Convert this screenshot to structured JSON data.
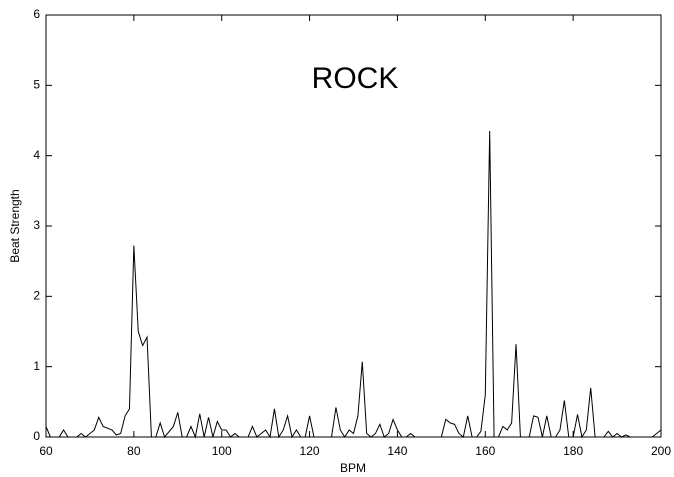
{
  "chart_data": {
    "type": "line",
    "title": "ROCK",
    "xlabel": "BPM",
    "ylabel": "Beat Strength",
    "x": [
      60,
      61,
      63,
      64,
      65,
      67,
      68,
      69,
      71,
      72,
      73,
      75,
      76,
      77,
      78,
      79,
      80,
      81,
      82,
      83,
      84,
      85,
      86,
      87,
      89,
      90,
      91,
      92,
      93,
      94,
      95,
      96,
      97,
      98,
      99,
      100,
      101,
      102,
      103,
      104,
      106,
      107,
      108,
      110,
      111,
      112,
      113,
      114,
      115,
      116,
      117,
      118,
      119,
      120,
      121,
      122,
      125,
      126,
      127,
      128,
      129,
      130,
      131,
      132,
      133,
      134,
      135,
      136,
      137,
      138,
      139,
      140,
      141,
      142,
      143,
      144,
      150,
      151,
      152,
      153,
      154,
      155,
      156,
      157,
      158,
      159,
      160,
      161,
      162,
      163,
      164,
      165,
      166,
      167,
      168,
      170,
      171,
      172,
      173,
      174,
      175,
      176,
      177,
      178,
      179,
      180,
      181,
      182,
      183,
      184,
      185,
      187,
      188,
      189,
      190,
      191,
      192,
      193,
      198,
      199,
      200
    ],
    "series": [
      {
        "name": "ROCK",
        "color": "#000000",
        "values": [
          0.15,
          0,
          0,
          0.1,
          0,
          0,
          0.05,
          0,
          0.1,
          0.28,
          0.15,
          0.1,
          0.03,
          0.05,
          0.3,
          0.4,
          2.72,
          1.5,
          1.3,
          1.42,
          0,
          0,
          0.2,
          0,
          0.15,
          0.35,
          0,
          0,
          0.15,
          0,
          0.33,
          0,
          0.28,
          0,
          0.22,
          0.1,
          0.1,
          0,
          0.05,
          0,
          0,
          0.15,
          0,
          0.1,
          0,
          0.4,
          0,
          0.1,
          0.3,
          0,
          0.1,
          0,
          0,
          0.3,
          0,
          0,
          0,
          0.42,
          0.1,
          0,
          0.1,
          0.05,
          0.3,
          1.07,
          0.05,
          0,
          0.05,
          0.18,
          0,
          0.05,
          0.25,
          0.1,
          0,
          0,
          0.05,
          0,
          0,
          0.25,
          0.2,
          0.18,
          0.05,
          0,
          0.3,
          0,
          0,
          0.08,
          0.6,
          4.35,
          0,
          0,
          0.15,
          0.1,
          0.2,
          1.32,
          0,
          0,
          0.3,
          0.28,
          0,
          0.3,
          0,
          0,
          0.1,
          0.52,
          0,
          0,
          0.32,
          0,
          0.1,
          0.7,
          0,
          0,
          0.08,
          0,
          0.05,
          0,
          0.03,
          0,
          0,
          0.05,
          0.1
        ]
      }
    ],
    "xlim": [
      60,
      200
    ],
    "ylim": [
      0,
      6
    ],
    "xticks": [
      60,
      80,
      100,
      120,
      140,
      160,
      180,
      200
    ],
    "yticks": [
      0,
      1,
      2,
      3,
      4,
      5,
      6
    ]
  }
}
